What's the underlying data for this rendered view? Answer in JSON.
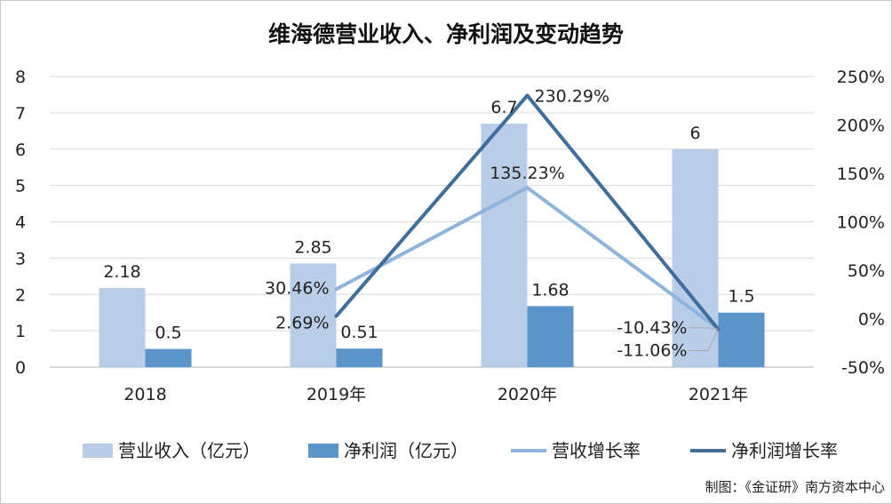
{
  "chart_title": "维海德营业收入、净利润及变动趋势",
  "credit": "制图：《金证研》南方资本中心",
  "colors": {
    "revenue_bar": "#b9cde8",
    "profit_bar": "#5b94cb",
    "revenue_growth_line": "#8fb4dd",
    "profit_growth_line": "#3f6e9c",
    "grid": "#d9d9d9"
  },
  "chart_data": {
    "type": "bar",
    "title": "维海德营业收入、净利润及变动趋势",
    "categories": [
      "2018",
      "2019年",
      "2020年",
      "2021年"
    ],
    "series": [
      {
        "name": "营业收入（亿元）",
        "type": "bar",
        "axis": "left",
        "values": [
          2.18,
          2.85,
          6.7,
          6
        ],
        "labels": [
          "2.18",
          "2.85",
          "6.7",
          "6"
        ]
      },
      {
        "name": "净利润（亿元）",
        "type": "bar",
        "axis": "left",
        "values": [
          0.5,
          0.51,
          1.68,
          1.5
        ],
        "labels": [
          "0.5",
          "0.51",
          "1.68",
          "1.5"
        ]
      },
      {
        "name": "营收增长率",
        "type": "line",
        "axis": "right",
        "values": [
          null,
          30.46,
          135.23,
          -10.43
        ],
        "labels": [
          "",
          "30.46%",
          "135.23%",
          "-10.43%"
        ]
      },
      {
        "name": "净利润增长率",
        "type": "line",
        "axis": "right",
        "values": [
          null,
          2.69,
          230.29,
          -11.06
        ],
        "labels": [
          "",
          "2.69%",
          "230.29%",
          "-11.06%"
        ]
      }
    ],
    "y_left": {
      "range": [
        0,
        8
      ],
      "ticks": [
        "0",
        "1",
        "2",
        "3",
        "4",
        "5",
        "6",
        "7",
        "8"
      ]
    },
    "y_right": {
      "range": [
        -50,
        250
      ],
      "ticks": [
        "-50%",
        "0%",
        "50%",
        "100%",
        "150%",
        "200%",
        "250%"
      ]
    },
    "grid": true,
    "legend_position": "bottom"
  }
}
